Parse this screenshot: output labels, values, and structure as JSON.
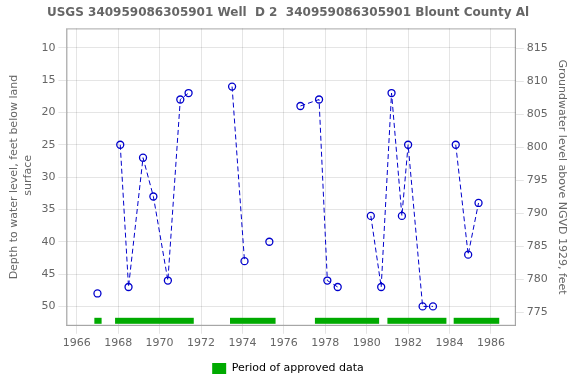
{
  "chart_data": {
    "type": "line",
    "title": "USGS 340959086305901 Well  D 2  340959086305901 Blount County Al",
    "ylabel": "Depth to water level, feet below land\n surface",
    "y2label": "Groundwater level above NGVD 1929, feet",
    "xlim": [
      1965.5,
      1987.2
    ],
    "xticks": [
      1966,
      1968,
      1970,
      1972,
      1974,
      1976,
      1978,
      1980,
      1982,
      1984,
      1986
    ],
    "ylim": [
      53,
      7
    ],
    "yticks": [
      10,
      15,
      20,
      25,
      30,
      35,
      40,
      45,
      50
    ],
    "y2lim": [
      773,
      818
    ],
    "y2ticks": [
      815,
      810,
      805,
      800,
      795,
      790,
      785,
      780,
      775
    ],
    "grid": true,
    "legend": "bottom",
    "series": [
      {
        "x": [
          1967.0
        ],
        "values": [
          48
        ],
        "color": "#0000cc",
        "marker": "circle",
        "line_style": "dashed"
      },
      {
        "x": [
          1968.1,
          1968.5,
          1969.2,
          1969.7,
          1970.4,
          1971.0,
          1971.4
        ],
        "values": [
          25,
          47,
          27,
          33,
          46,
          18,
          17
        ],
        "color": "#0000cc",
        "marker": "circle",
        "line_style": "dashed"
      },
      {
        "x": [
          1973.5,
          1974.1
        ],
        "values": [
          16,
          43
        ],
        "color": "#0000cc",
        "marker": "circle",
        "line_style": "dashed"
      },
      {
        "x": [
          1975.3
        ],
        "values": [
          40
        ],
        "color": "#0000cc",
        "marker": "circle",
        "line_style": "dashed"
      },
      {
        "x": [
          1976.8,
          1977.7,
          1978.1,
          1978.6
        ],
        "values": [
          19,
          18,
          46,
          47
        ],
        "color": "#0000cc",
        "marker": "circle",
        "line_style": "dashed"
      },
      {
        "x": [
          1980.2,
          1980.7,
          1981.2,
          1981.7,
          1982.0,
          1982.7,
          1983.2
        ],
        "values": [
          36,
          47,
          17,
          36,
          25,
          50,
          50
        ],
        "color": "#0000cc",
        "marker": "circle",
        "line_style": "dashed"
      },
      {
        "x": [
          1984.3,
          1984.9,
          1985.4
        ],
        "values": [
          25,
          42,
          34
        ],
        "color": "#0000cc",
        "marker": "circle",
        "line_style": "dashed"
      }
    ],
    "approved_periods": {
      "name": "Period of approved data",
      "color": "#00aa00",
      "ranges": [
        [
          1966.85,
          1967.2
        ],
        [
          1967.85,
          1971.65
        ],
        [
          1973.4,
          1975.6
        ],
        [
          1977.5,
          1980.6
        ],
        [
          1981.0,
          1983.85
        ],
        [
          1984.2,
          1986.4
        ]
      ]
    }
  }
}
